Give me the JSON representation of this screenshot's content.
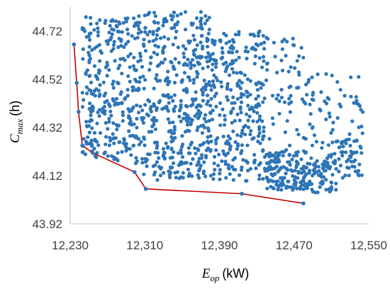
{
  "chart_data": {
    "type": "scatter",
    "title": "",
    "xlabel": {
      "symbol": "E",
      "subscript": "op",
      "unit": "(kW)"
    },
    "ylabel": {
      "symbol": "C",
      "subscript": "max",
      "unit": "(h)"
    },
    "xlim": [
      12230,
      12550
    ],
    "ylim": [
      43.92,
      44.82
    ],
    "x_ticks": [
      12230,
      12310,
      12390,
      12470,
      12550
    ],
    "x_tick_labels": [
      "12,230",
      "12,310",
      "12,390",
      "12,470",
      "12,550"
    ],
    "y_ticks": [
      43.92,
      44.12,
      44.32,
      44.52,
      44.72
    ],
    "y_tick_labels": [
      "43.92",
      "44.12",
      "44.32",
      "44.52",
      "44.72"
    ],
    "grid": false,
    "legend": "none",
    "colors": {
      "points": "#2e75b6",
      "front": "#c00000",
      "axis": "#bfbfbf"
    },
    "pareto_front": {
      "x": [
        12234,
        12237,
        12239,
        12243,
        12254,
        12299,
        12311,
        12414,
        12480
      ],
      "y": [
        44.665,
        44.505,
        44.385,
        44.245,
        44.215,
        44.135,
        44.065,
        44.045,
        44.005
      ]
    },
    "scatter": {
      "point_count": 1400,
      "note_regions": [
        {
          "x": [
            12243,
            12300
          ],
          "y": [
            44.18,
            44.78
          ]
        },
        {
          "x": [
            12300,
            12380
          ],
          "y": [
            44.1,
            44.8
          ]
        },
        {
          "x": [
            12380,
            12440
          ],
          "y": [
            44.09,
            44.72
          ]
        },
        {
          "x": [
            12440,
            12480
          ],
          "y": [
            44.06,
            44.7
          ]
        },
        {
          "x": [
            12480,
            12515
          ],
          "y": [
            44.05,
            44.55
          ]
        },
        {
          "x": [
            12515,
            12545
          ],
          "y": [
            44.11,
            44.54
          ]
        }
      ]
    }
  }
}
